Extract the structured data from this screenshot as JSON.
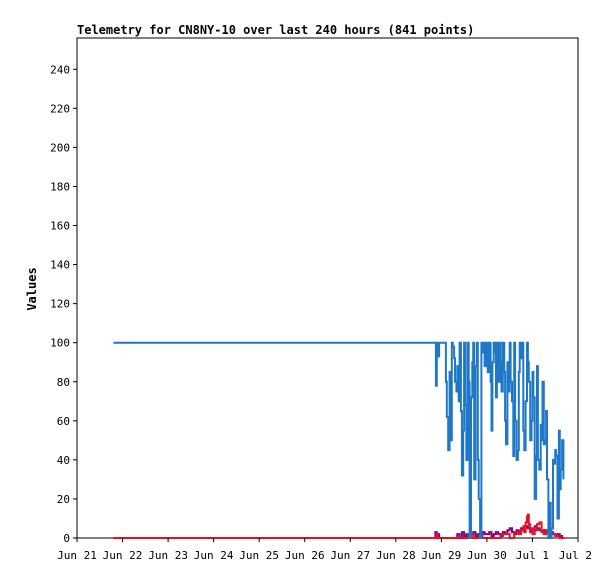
{
  "chart_data": {
    "type": "line",
    "title": "Telemetry for CN8NY-10 over last 240 hours (841 points)",
    "xlabel": "",
    "ylabel": "Values",
    "ylim": [
      0,
      256
    ],
    "yticks": [
      0,
      20,
      40,
      60,
      80,
      100,
      120,
      140,
      160,
      180,
      200,
      220,
      240
    ],
    "xlim": [
      0,
      11
    ],
    "xticks": [
      {
        "pos": 0,
        "label": "Jun 21"
      },
      {
        "pos": 1,
        "label": "Jun 22"
      },
      {
        "pos": 2,
        "label": "Jun 23"
      },
      {
        "pos": 3,
        "label": "Jun 24"
      },
      {
        "pos": 4,
        "label": "Jun 25"
      },
      {
        "pos": 5,
        "label": "Jun 26"
      },
      {
        "pos": 6,
        "label": "Jun 27"
      },
      {
        "pos": 7,
        "label": "Jun 28"
      },
      {
        "pos": 8,
        "label": "Jun 29"
      },
      {
        "pos": 9,
        "label": "Jun 30"
      },
      {
        "pos": 10,
        "label": "Jul 1"
      },
      {
        "pos": 11,
        "label": "Jul 2"
      }
    ],
    "grid": false,
    "legend": "none",
    "colors": {
      "series1": "#1f77c8",
      "series2": "#e8101a",
      "series3": "#800080"
    },
    "series": [
      {
        "color": "#1f77c8",
        "x": [
          0.8,
          7.8,
          7.85,
          7.88,
          7.9,
          7.92,
          7.95,
          8.05,
          8.1,
          8.12,
          8.15,
          8.18,
          8.2,
          8.23,
          8.25,
          8.28,
          8.3,
          8.33,
          8.35,
          8.38,
          8.4,
          8.43,
          8.45,
          8.48,
          8.5,
          8.53,
          8.55,
          8.58,
          8.6,
          8.62,
          8.65,
          8.68,
          8.7,
          8.72,
          8.75,
          8.78,
          8.8,
          8.82,
          8.85,
          8.88,
          8.9,
          8.92,
          8.95,
          8.98,
          9.0,
          9.02,
          9.05,
          9.08,
          9.1,
          9.12,
          9.15,
          9.18,
          9.2,
          9.22,
          9.25,
          9.28,
          9.3,
          9.32,
          9.35,
          9.38,
          9.4,
          9.42,
          9.45,
          9.48,
          9.5,
          9.52,
          9.55,
          9.58,
          9.6,
          9.62,
          9.65,
          9.68,
          9.7,
          9.72,
          9.75,
          9.78,
          9.8,
          9.82,
          9.85,
          9.88,
          9.9,
          9.92,
          9.95,
          9.98,
          10.0,
          10.02,
          10.05,
          10.08,
          10.1,
          10.12,
          10.15,
          10.18,
          10.2,
          10.22,
          10.25,
          10.28,
          10.3,
          10.32,
          10.35,
          10.38,
          10.4,
          10.42,
          10.45,
          10.48,
          10.5,
          10.52,
          10.55,
          10.58,
          10.6,
          10.62,
          10.65,
          10.68
        ],
        "values": [
          100,
          100,
          100,
          78,
          100,
          93,
          100,
          100,
          80,
          62,
          45,
          85,
          50,
          100,
          98,
          92,
          80,
          75,
          88,
          70,
          100,
          65,
          32,
          55,
          100,
          68,
          40,
          100,
          80,
          0,
          72,
          90,
          100,
          30,
          88,
          100,
          40,
          20,
          0,
          100,
          95,
          100,
          88,
          100,
          100,
          85,
          100,
          80,
          55,
          90,
          100,
          95,
          72,
          100,
          80,
          100,
          90,
          75,
          100,
          85,
          60,
          48,
          90,
          75,
          100,
          80,
          70,
          42,
          100,
          60,
          40,
          45,
          85,
          100,
          92,
          100,
          55,
          45,
          70,
          100,
          90,
          80,
          50,
          60,
          85,
          72,
          20,
          42,
          88,
          40,
          35,
          58,
          50,
          80,
          48,
          50,
          65,
          30,
          0,
          18,
          0,
          5,
          40,
          38,
          45,
          42,
          10,
          55,
          25,
          35,
          50,
          30
        ]
      },
      {
        "color": "#e8101a",
        "x": [
          0.8,
          7.88,
          7.9,
          7.92,
          8.5,
          8.6,
          8.7,
          9.0,
          9.3,
          9.5,
          9.6,
          9.7,
          9.75,
          9.8,
          9.82,
          9.85,
          9.88,
          9.9,
          9.92,
          9.95,
          9.98,
          10.0,
          10.05,
          10.1,
          10.15,
          10.2,
          10.25,
          10.3,
          10.35,
          10.4,
          10.5,
          10.6,
          10.7
        ],
        "values": [
          0,
          0,
          2,
          0,
          0,
          2,
          0,
          0,
          2,
          0,
          3,
          2,
          4,
          6,
          3,
          8,
          11,
          12,
          7,
          3,
          5,
          2,
          4,
          7,
          8,
          3,
          2,
          4,
          1,
          2,
          1,
          0,
          0
        ]
      },
      {
        "color": "#800080",
        "x": [
          0.8,
          7.85,
          7.87,
          7.9,
          7.92,
          7.95,
          8.3,
          8.35,
          8.4,
          8.45,
          8.5,
          8.55,
          8.6,
          8.65,
          8.7,
          8.75,
          8.8,
          8.85,
          8.9,
          8.95,
          9.0,
          9.05,
          9.1,
          9.15,
          9.2,
          9.25,
          9.3,
          9.35,
          9.4,
          9.45,
          9.5,
          9.55,
          9.6,
          9.65,
          9.7,
          9.75,
          9.8,
          9.85,
          9.9,
          9.95,
          10.0,
          10.05,
          10.1,
          10.15,
          10.2,
          10.25,
          10.3,
          10.35,
          10.4,
          10.45,
          10.5,
          10.55,
          10.6,
          10.65,
          10.7
        ],
        "values": [
          0,
          0,
          3,
          1,
          2,
          0,
          0,
          2,
          0,
          3,
          1,
          2,
          0,
          2,
          3,
          1,
          2,
          0,
          3,
          2,
          2,
          3,
          1,
          2,
          3,
          2,
          1,
          3,
          2,
          4,
          5,
          3,
          2,
          4,
          3,
          5,
          4,
          6,
          5,
          3,
          4,
          6,
          5,
          4,
          3,
          4,
          3,
          2,
          3,
          2,
          1,
          2,
          1,
          0,
          0
        ]
      }
    ]
  }
}
